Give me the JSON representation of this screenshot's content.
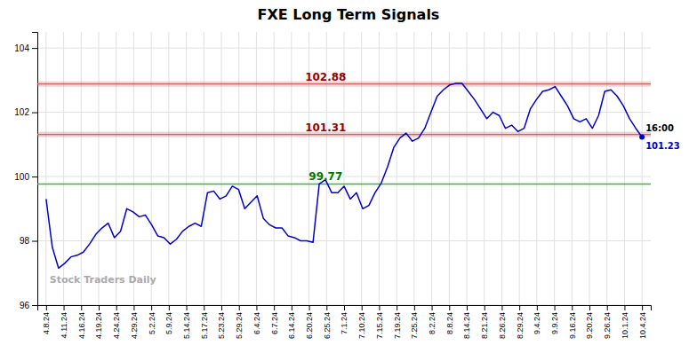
{
  "chart_data": {
    "type": "line",
    "title": "FXE Long Term Signals",
    "color": "#0000cc",
    "grid": true,
    "xlim": [
      -0.5,
      34.5
    ],
    "xticks": [
      {
        "value": 0,
        "label": "4.8.24"
      },
      {
        "value": 1,
        "label": "4.11.24"
      },
      {
        "value": 2,
        "label": "4.16.24"
      },
      {
        "value": 3,
        "label": "4.19.24"
      },
      {
        "value": 4,
        "label": "4.24.24"
      },
      {
        "value": 5,
        "label": "4.29.24"
      },
      {
        "value": 6,
        "label": "5.2.24"
      },
      {
        "value": 7,
        "label": "5.9.24"
      },
      {
        "value": 8,
        "label": "5.14.24"
      },
      {
        "value": 9,
        "label": "5.17.24"
      },
      {
        "value": 10,
        "label": "5.23.24"
      },
      {
        "value": 11,
        "label": "5.29.24"
      },
      {
        "value": 12,
        "label": "6.4.24"
      },
      {
        "value": 13,
        "label": "6.7.24"
      },
      {
        "value": 14,
        "label": "6.14.24"
      },
      {
        "value": 15,
        "label": "6.20.24"
      },
      {
        "value": 16,
        "label": "6.25.24"
      },
      {
        "value": 17,
        "label": "7.1.24"
      },
      {
        "value": 18,
        "label": "7.10.24"
      },
      {
        "value": 19,
        "label": "7.15.24"
      },
      {
        "value": 20,
        "label": "7.19.24"
      },
      {
        "value": 21,
        "label": "7.25.24"
      },
      {
        "value": 22,
        "label": "8.2.24"
      },
      {
        "value": 23,
        "label": "8.8.24"
      },
      {
        "value": 24,
        "label": "8.14.24"
      },
      {
        "value": 25,
        "label": "8.21.24"
      },
      {
        "value": 26,
        "label": "8.26.24"
      },
      {
        "value": 27,
        "label": "8.29.24"
      },
      {
        "value": 28,
        "label": "9.4.24"
      },
      {
        "value": 29,
        "label": "9.9.24"
      },
      {
        "value": 30,
        "label": "9.16.24"
      },
      {
        "value": 31,
        "label": "9.20.24"
      },
      {
        "value": 32,
        "label": "9.26.24"
      },
      {
        "value": 33,
        "label": "10.1.24"
      },
      {
        "value": 34,
        "label": "10.4.24"
      }
    ],
    "ylim": [
      96,
      104.5
    ],
    "yticks": [
      96,
      98,
      100,
      102,
      104
    ],
    "x": [
      0,
      0.3542,
      0.7083,
      1.0625,
      1.4167,
      1.7708,
      2.125,
      2.4792,
      2.8333,
      3.1875,
      3.5417,
      3.8958,
      4.25,
      4.6042,
      4.9583,
      5.3125,
      5.6667,
      6.0208,
      6.375,
      6.7292,
      7.0833,
      7.4375,
      7.7917,
      8.1458,
      8.5,
      8.8542,
      9.2083,
      9.5625,
      9.9167,
      10.2708,
      10.625,
      10.9792,
      11.3333,
      11.6875,
      12.0417,
      12.3958,
      12.75,
      13.1042,
      13.4583,
      13.8125,
      14.1667,
      14.5208,
      14.875,
      15.2292,
      15.5833,
      15.9375,
      16.2917,
      16.6458,
      17,
      17.3542,
      17.7083,
      18.0625,
      18.4167,
      18.7708,
      19.125,
      19.4792,
      19.8333,
      20.1875,
      20.5417,
      20.8958,
      21.25,
      21.6042,
      21.9583,
      22.3125,
      22.6667,
      23.0208,
      23.375,
      23.7292,
      24.0833,
      24.4375,
      24.7917,
      25.1458,
      25.5,
      25.8542,
      26.2083,
      26.5625,
      26.9167,
      27.2708,
      27.625,
      27.9792,
      28.3333,
      28.6875,
      29.0417,
      29.3958,
      29.75,
      30.1042,
      30.4583,
      30.8125,
      31.1667,
      31.5208,
      31.875,
      32.2292,
      32.5833,
      32.9375,
      33.2917,
      33.6458,
      34
    ],
    "values": [
      99.3,
      97.8,
      97.15,
      97.3,
      97.5,
      97.55,
      97.65,
      97.9,
      98.2,
      98.4,
      98.55,
      98.1,
      98.3,
      99.0,
      98.9,
      98.75,
      98.8,
      98.5,
      98.15,
      98.1,
      97.9,
      98.05,
      98.3,
      98.45,
      98.55,
      98.45,
      99.5,
      99.55,
      99.3,
      99.4,
      99.7,
      99.6,
      99.0,
      99.2,
      99.4,
      98.7,
      98.5,
      98.4,
      98.4,
      98.15,
      98.1,
      98.0,
      98.0,
      97.95,
      99.77,
      99.9,
      99.5,
      99.5,
      99.7,
      99.3,
      99.5,
      99.0,
      99.1,
      99.5,
      99.8,
      100.3,
      100.9,
      101.2,
      101.35,
      101.1,
      101.2,
      101.5,
      102.0,
      102.5,
      102.7,
      102.85,
      102.9,
      102.9,
      102.65,
      102.4,
      102.1,
      101.8,
      102.0,
      101.9,
      101.5,
      101.6,
      101.4,
      101.5,
      102.1,
      102.4,
      102.65,
      102.7,
      102.8,
      102.5,
      102.2,
      101.8,
      101.7,
      101.8,
      101.5,
      101.9,
      102.65,
      102.7,
      102.5,
      102.2,
      101.8,
      101.5,
      101.23
    ],
    "reference_lines": [
      {
        "value": 102.88,
        "label": "102.88",
        "type": "band",
        "color": "#cc6666",
        "label_color": "#990000"
      },
      {
        "value": 101.31,
        "label": "101.31",
        "type": "band",
        "color": "#cc6666",
        "label_color": "#990000"
      },
      {
        "value": 99.77,
        "label": "99.77",
        "type": "line",
        "color": "#33bb33",
        "label_color": "#007700"
      }
    ],
    "annotations": [
      {
        "text": "16:00",
        "color": "#000000"
      },
      {
        "text": "101.23",
        "color": "#0000cc"
      },
      {
        "text": "Stock Traders Daily",
        "color": "#aaaaaa"
      }
    ]
  }
}
